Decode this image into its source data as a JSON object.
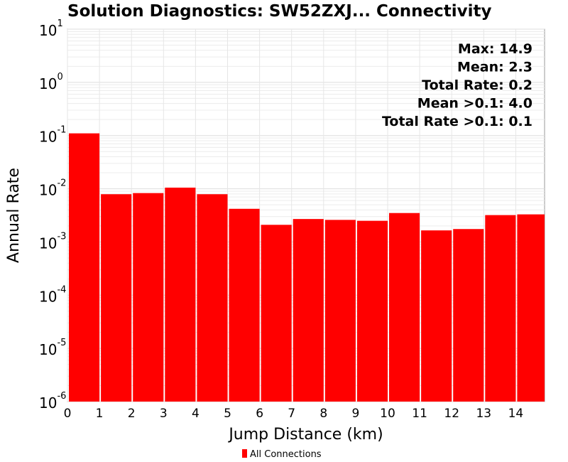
{
  "chart_data": {
    "type": "bar",
    "title": "Solution Diagnostics: SW52ZXJ... Connectivity",
    "xlabel": "Jump Distance (km)",
    "ylabel": "Annual Rate",
    "yscale": "log",
    "ylim": [
      1e-06,
      10
    ],
    "xlim": [
      0,
      14.9
    ],
    "x_bin_width": 1.0,
    "grid": true,
    "x_ticks": [
      0,
      1,
      2,
      3,
      4,
      5,
      6,
      7,
      8,
      9,
      10,
      11,
      12,
      13,
      14
    ],
    "y_ticks": [
      {
        "base": "10",
        "exp": "1",
        "value": 10
      },
      {
        "base": "10",
        "exp": "0",
        "value": 1
      },
      {
        "base": "10",
        "exp": "-1",
        "value": 0.1
      },
      {
        "base": "10",
        "exp": "-2",
        "value": 0.01
      },
      {
        "base": "10",
        "exp": "-3",
        "value": 0.001
      },
      {
        "base": "10",
        "exp": "-4",
        "value": 0.0001
      },
      {
        "base": "10",
        "exp": "-5",
        "value": 1e-05
      },
      {
        "base": "10",
        "exp": "-6",
        "value": 1e-06
      }
    ],
    "series": [
      {
        "name": "All Connections",
        "color": "#ff0000",
        "x": [
          0,
          1,
          2,
          3,
          4,
          5,
          6,
          7,
          8,
          9,
          10,
          11,
          12,
          13,
          14
        ],
        "values": [
          0.11,
          0.0079,
          0.0083,
          0.0105,
          0.0079,
          0.0042,
          0.0021,
          0.0027,
          0.0026,
          0.0025,
          0.0035,
          0.00165,
          0.00175,
          0.0032,
          0.0033
        ]
      }
    ],
    "annotations": [
      "Max: 14.9",
      "Mean: 2.3",
      "Total Rate: 0.2",
      "Mean >0.1: 4.0",
      "Total Rate >0.1: 0.1"
    ],
    "legend": {
      "placement": "bottom",
      "entries": [
        "All Connections"
      ]
    }
  }
}
